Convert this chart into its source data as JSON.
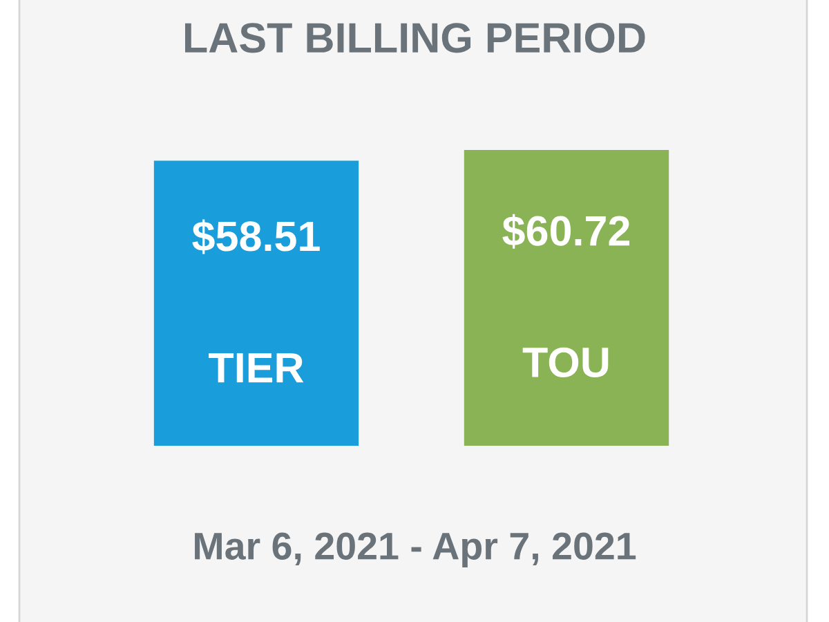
{
  "chart_data": {
    "type": "bar",
    "title": "LAST BILLING PERIOD",
    "categories": [
      "TIER",
      "TOU"
    ],
    "values": [
      58.51,
      60.72
    ],
    "colors": [
      "#1a9edb",
      "#8ab356"
    ],
    "value_labels": [
      "$58.51",
      "$60.72"
    ],
    "annotations": [
      "Mar 6, 2021 - Apr 7, 2021"
    ]
  }
}
